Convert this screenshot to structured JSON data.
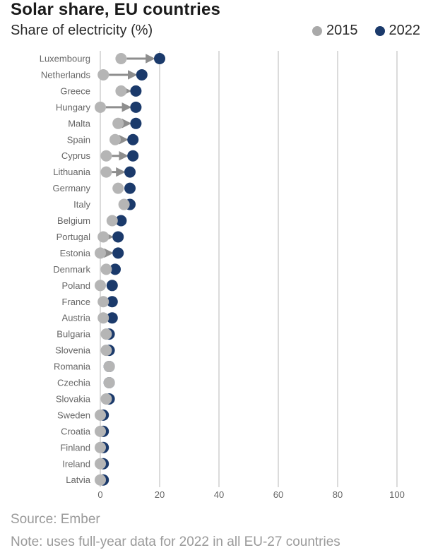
{
  "title": "Solar share, EU countries",
  "subtitle": "Share of electricity (%)",
  "legend": [
    {
      "label": "2015",
      "color": "#a9a9a9"
    },
    {
      "label": "2022",
      "color": "#1b3a6b"
    }
  ],
  "source": "Source: Ember",
  "note": "Note: uses full-year data for 2022 in all EU-27 countries",
  "colors": {
    "y2015": "#b5b5b5",
    "y2022": "#1b3a6b",
    "arrow": "#8e8e8e",
    "grid": "#cfcfcf",
    "label": "#666666"
  },
  "chart_data": {
    "type": "dumbbell",
    "xlim": [
      0,
      100
    ],
    "xticks": [
      0,
      20,
      40,
      60,
      80,
      100
    ],
    "categories": [
      "Luxembourg",
      "Netherlands",
      "Greece",
      "Hungary",
      "Malta",
      "Spain",
      "Cyprus",
      "Lithuania",
      "Germany",
      "Italy",
      "Belgium",
      "Portugal",
      "Estonia",
      "Denmark",
      "Poland",
      "France",
      "Austria",
      "Bulgaria",
      "Slovenia",
      "Romania",
      "Czechia",
      "Slovakia",
      "Sweden",
      "Croatia",
      "Finland",
      "Ireland",
      "Latvia"
    ],
    "series": [
      {
        "name": "2015",
        "values": [
          7,
          1,
          7,
          0,
          6,
          5,
          2,
          2,
          6,
          8,
          4,
          1,
          0,
          2,
          0,
          1,
          1,
          2,
          2,
          3,
          3,
          2,
          0,
          0,
          0,
          0,
          0
        ]
      },
      {
        "name": "2022",
        "values": [
          20,
          14,
          12,
          12,
          12,
          11,
          11,
          10,
          10,
          10,
          7,
          6,
          6,
          5,
          4,
          4,
          4,
          3,
          3,
          3,
          3,
          3,
          1,
          1,
          1,
          1,
          1
        ]
      }
    ]
  }
}
